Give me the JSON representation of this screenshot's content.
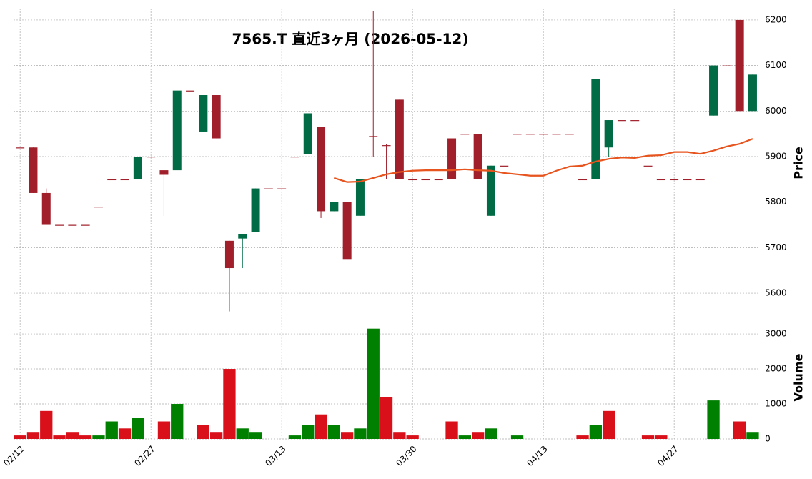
{
  "chart_data": {
    "type": "candlestick",
    "title": "7565.T 直近3ヶ月 (2026-05-12)",
    "categories": [
      "02/12",
      null,
      null,
      null,
      null,
      null,
      null,
      null,
      null,
      null,
      "02/27",
      null,
      null,
      null,
      null,
      null,
      null,
      null,
      null,
      null,
      "03/13",
      null,
      null,
      null,
      null,
      null,
      null,
      null,
      null,
      null,
      "03/30",
      null,
      null,
      null,
      null,
      null,
      null,
      null,
      null,
      null,
      "04/13",
      null,
      null,
      null,
      null,
      null,
      null,
      null,
      null,
      null,
      "04/27",
      null,
      null,
      null,
      null,
      null,
      null
    ],
    "open": [
      5920,
      5920,
      5820,
      5750,
      5750,
      5750,
      5790,
      5850,
      5850,
      5850,
      5900,
      5870,
      5870,
      6045,
      5955,
      6035,
      5715,
      5720,
      5735,
      5830,
      5830,
      5900,
      5905,
      5965,
      5780,
      5800,
      5770,
      5945,
      5925,
      6025,
      5850,
      5850,
      5850,
      5940,
      5950,
      5950,
      5770,
      5880,
      5950,
      5950,
      5950,
      5950,
      5950,
      5850,
      5850,
      5920,
      5980,
      5980,
      5880,
      5850,
      5850,
      5850,
      5850,
      5990,
      6100,
      6200,
      6000
    ],
    "high": [
      5920,
      5920,
      5830,
      5750,
      5750,
      5750,
      5790,
      5850,
      5850,
      5900,
      5900,
      5870,
      6045,
      6045,
      6035,
      6035,
      5715,
      5730,
      5830,
      5830,
      5830,
      5900,
      5995,
      5965,
      5800,
      5800,
      5850,
      6220,
      5928,
      6025,
      5850,
      5850,
      5850,
      5940,
      5950,
      5950,
      5880,
      5880,
      5950,
      5950,
      5950,
      5950,
      5950,
      5850,
      6070,
      5980,
      5980,
      5980,
      5880,
      5850,
      5850,
      5850,
      5850,
      6100,
      6100,
      6200,
      6080
    ],
    "low": [
      5920,
      5820,
      5750,
      5750,
      5750,
      5750,
      5790,
      5850,
      5850,
      5850,
      5900,
      5770,
      5870,
      6045,
      5955,
      5940,
      5560,
      5655,
      5735,
      5830,
      5830,
      5900,
      5905,
      5765,
      5780,
      5675,
      5770,
      5900,
      5850,
      5850,
      5850,
      5850,
      5850,
      5850,
      5950,
      5850,
      5770,
      5880,
      5950,
      5950,
      5950,
      5950,
      5950,
      5850,
      5850,
      5900,
      5980,
      5980,
      5880,
      5850,
      5850,
      5850,
      5850,
      5990,
      6100,
      6000,
      6000
    ],
    "close": [
      5920,
      5820,
      5750,
      5750,
      5750,
      5750,
      5790,
      5850,
      5850,
      5900,
      5900,
      5860,
      6045,
      6045,
      6035,
      5940,
      5655,
      5730,
      5830,
      5830,
      5830,
      5900,
      5995,
      5780,
      5800,
      5675,
      5850,
      5945,
      5925,
      5850,
      5850,
      5850,
      5850,
      5850,
      5950,
      5850,
      5880,
      5880,
      5950,
      5950,
      5950,
      5950,
      5950,
      5850,
      6070,
      5980,
      5980,
      5980,
      5880,
      5850,
      5850,
      5850,
      5850,
      6100,
      6100,
      6000,
      6080
    ],
    "up_color": "#006b45",
    "down_color": "#a01f2b",
    "ma": {
      "color": "#e8541e",
      "values": [
        null,
        null,
        null,
        null,
        null,
        null,
        null,
        null,
        null,
        null,
        null,
        null,
        null,
        null,
        null,
        null,
        null,
        null,
        null,
        null,
        null,
        null,
        null,
        null,
        5853,
        5844,
        5845,
        5853,
        5861,
        5866,
        5869,
        5870,
        5870,
        5870,
        5872,
        5870,
        5869,
        5864,
        5861,
        5858,
        5858,
        5869,
        5878,
        5880,
        5889,
        5895,
        5898,
        5897,
        5902,
        5903,
        5910,
        5910,
        5906,
        5913,
        5922,
        5928,
        5939
      ]
    },
    "ylim": [
      5553,
      6225
    ],
    "yticks": [
      5600,
      5700,
      5800,
      5900,
      6000,
      6100,
      6200
    ],
    "ylabel": "Price",
    "grid": true,
    "volume": {
      "type": "bar",
      "ylabel": "Volume",
      "ylim": [
        0,
        3450
      ],
      "yticks": [
        0,
        1000,
        2000,
        3000
      ],
      "up_color": "#008000",
      "down_color": "#d9101a",
      "values": [
        100,
        200,
        800,
        100,
        200,
        100,
        100,
        500,
        300,
        600,
        0,
        500,
        1000,
        0,
        400,
        200,
        2000,
        300,
        200,
        0,
        0,
        100,
        400,
        700,
        400,
        200,
        300,
        3150,
        1200,
        200,
        100,
        0,
        0,
        500,
        100,
        200,
        300,
        0,
        100,
        0,
        0,
        0,
        0,
        100,
        400,
        800,
        0,
        0,
        100,
        100,
        0,
        0,
        0,
        1100,
        0,
        500,
        200
      ]
    }
  }
}
